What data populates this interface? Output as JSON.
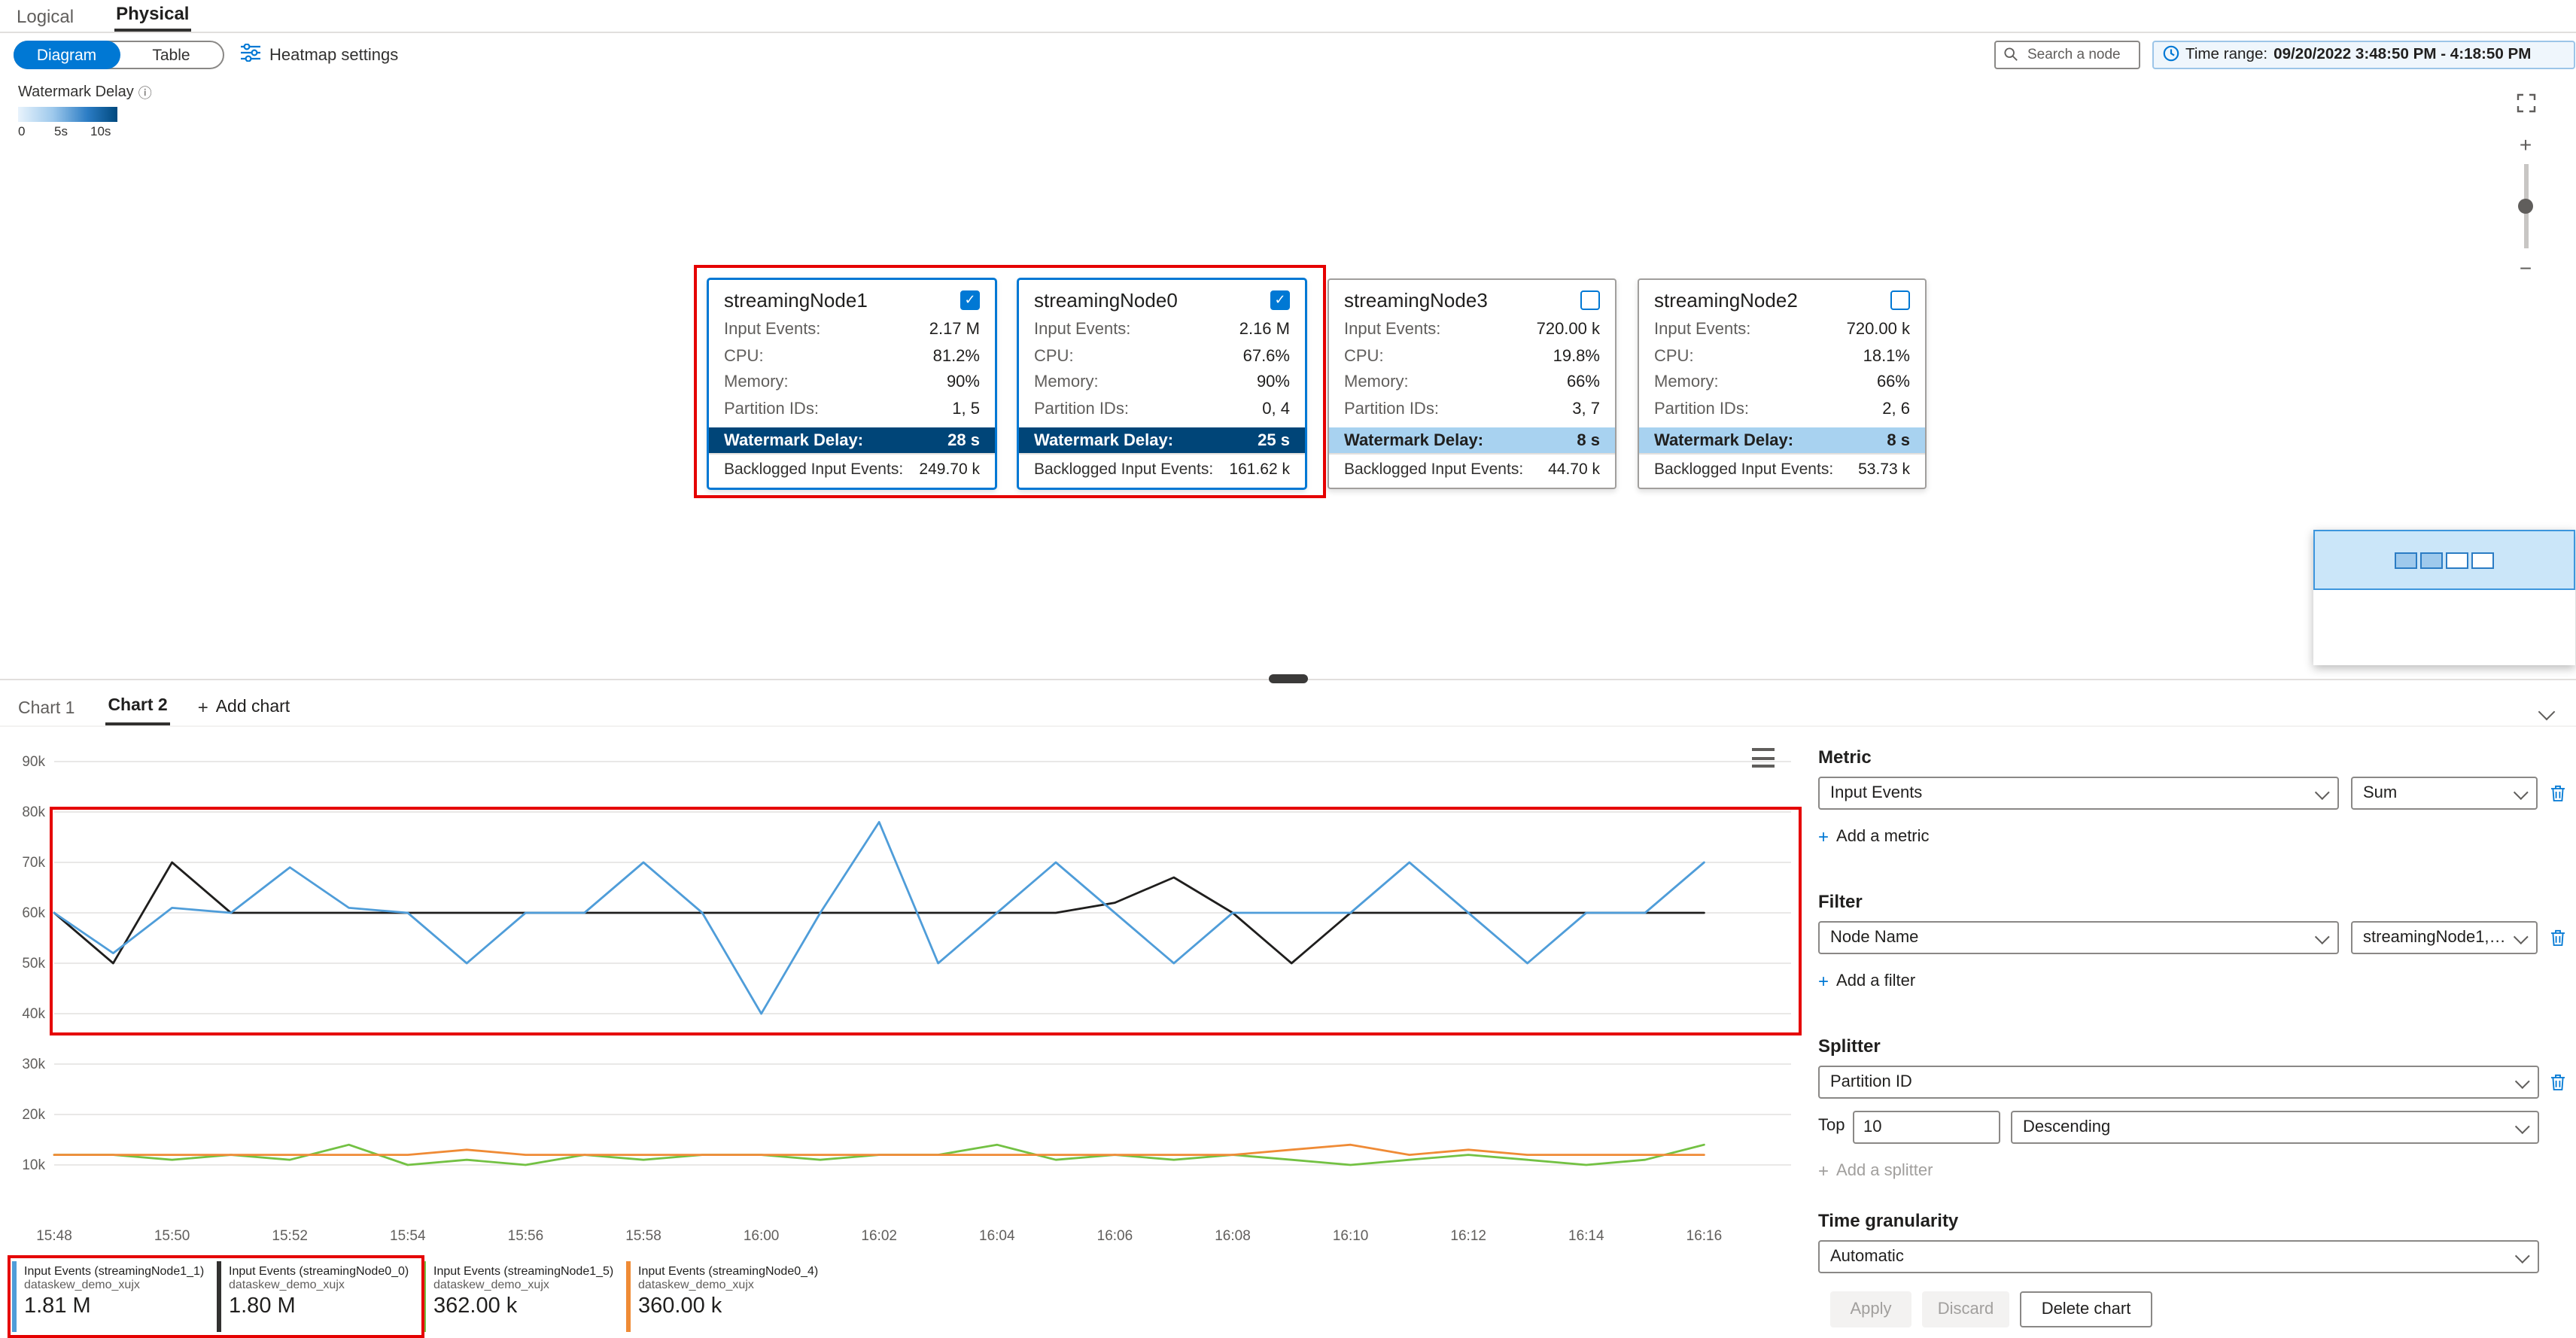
{
  "icons": {
    "plus": "+",
    "minus": "−",
    "check": "✓",
    "info": "ⓘ"
  },
  "header": {
    "tabs": [
      {
        "label": "Logical",
        "active": false
      },
      {
        "label": "Physical",
        "active": true
      }
    ],
    "view_toggle": {
      "diagram_label": "Diagram",
      "table_label": "Table",
      "selected": "Diagram"
    },
    "heatmap_settings_label": "Heatmap settings",
    "search_placeholder": "Search a node",
    "time_range": {
      "label": "Time range:",
      "value": "09/20/2022 3:48:50 PM - 4:18:50 PM"
    }
  },
  "watermark_legend": {
    "title": "Watermark Delay",
    "ticks": [
      "0",
      "5s",
      "10s"
    ]
  },
  "nodes": [
    {
      "name": "streamingNode1",
      "checked": true,
      "selected": true,
      "metrics": [
        [
          "Input Events:",
          "2.17 M"
        ],
        [
          "CPU:",
          "81.2%"
        ],
        [
          "Memory:",
          "90%"
        ],
        [
          "Partition IDs:",
          "1, 5"
        ]
      ],
      "watermark_delay": {
        "label": "Watermark Delay:",
        "value": "28 s",
        "severity": "high"
      },
      "backlog": {
        "label": "Backlogged Input Events:",
        "value": "249.70 k"
      }
    },
    {
      "name": "streamingNode0",
      "checked": true,
      "selected": true,
      "metrics": [
        [
          "Input Events:",
          "2.16 M"
        ],
        [
          "CPU:",
          "67.6%"
        ],
        [
          "Memory:",
          "90%"
        ],
        [
          "Partition IDs:",
          "0, 4"
        ]
      ],
      "watermark_delay": {
        "label": "Watermark Delay:",
        "value": "25 s",
        "severity": "high"
      },
      "backlog": {
        "label": "Backlogged Input Events:",
        "value": "161.62 k"
      }
    },
    {
      "name": "streamingNode3",
      "checked": false,
      "selected": false,
      "metrics": [
        [
          "Input Events:",
          "720.00 k"
        ],
        [
          "CPU:",
          "19.8%"
        ],
        [
          "Memory:",
          "66%"
        ],
        [
          "Partition IDs:",
          "3, 7"
        ]
      ],
      "watermark_delay": {
        "label": "Watermark Delay:",
        "value": "8 s",
        "severity": "medium"
      },
      "backlog": {
        "label": "Backlogged Input Events:",
        "value": "44.70 k"
      }
    },
    {
      "name": "streamingNode2",
      "checked": false,
      "selected": false,
      "metrics": [
        [
          "Input Events:",
          "720.00 k"
        ],
        [
          "CPU:",
          "18.1%"
        ],
        [
          "Memory:",
          "66%"
        ],
        [
          "Partition IDs:",
          "2, 6"
        ]
      ],
      "watermark_delay": {
        "label": "Watermark Delay:",
        "value": "8 s",
        "severity": "medium"
      },
      "backlog": {
        "label": "Backlogged Input Events:",
        "value": "53.73 k"
      }
    }
  ],
  "chart_tabs": {
    "tabs": [
      {
        "label": "Chart 1",
        "active": false
      },
      {
        "label": "Chart 2",
        "active": true
      }
    ],
    "add_chart_label": "Add chart"
  },
  "chart_data": {
    "type": "line",
    "x": [
      "15:48",
      "15:49",
      "15:50",
      "15:51",
      "15:52",
      "15:53",
      "15:54",
      "15:55",
      "15:56",
      "15:57",
      "15:58",
      "15:59",
      "16:00",
      "16:01",
      "16:02",
      "16:03",
      "16:04",
      "16:05",
      "16:06",
      "16:07",
      "16:08",
      "16:09",
      "16:10",
      "16:11",
      "16:12",
      "16:13",
      "16:14",
      "16:15",
      "16:16"
    ],
    "x_ticks": [
      "15:48",
      "15:50",
      "15:52",
      "15:54",
      "15:56",
      "15:58",
      "16:00",
      "16:02",
      "16:04",
      "16:06",
      "16:08",
      "16:10",
      "16:12",
      "16:14",
      "16:16"
    ],
    "y_ticks": [
      "90k",
      "80k",
      "70k",
      "60k",
      "50k",
      "40k",
      "30k",
      "20k",
      "10k"
    ],
    "ylim": [
      0,
      90000
    ],
    "grid": true,
    "legend_position": "bottom",
    "series": [
      {
        "name": "Input Events (streamingNode1_1)",
        "color": "#4f9dd9",
        "values": [
          60000,
          52000,
          61000,
          60000,
          69000,
          61000,
          60000,
          50000,
          60000,
          60000,
          70000,
          60000,
          40000,
          60000,
          78000,
          50000,
          60000,
          70000,
          60000,
          50000,
          60000,
          60000,
          60000,
          70000,
          60000,
          50000,
          60000,
          60000,
          70000
        ]
      },
      {
        "name": "Input Events (streamingNode0_0)",
        "color": "#1f1e1d",
        "values": [
          60000,
          50000,
          70000,
          60000,
          60000,
          60000,
          60000,
          60000,
          60000,
          60000,
          60000,
          60000,
          60000,
          60000,
          60000,
          60000,
          60000,
          60000,
          62000,
          67000,
          60000,
          50000,
          60000,
          60000,
          60000,
          60000,
          60000,
          60000,
          60000
        ]
      },
      {
        "name": "Input Events (streamingNode1_5)",
        "color": "#73c143",
        "values": [
          12000,
          12000,
          11000,
          12000,
          11000,
          14000,
          10000,
          11000,
          10000,
          12000,
          11000,
          12000,
          12000,
          11000,
          12000,
          12000,
          14000,
          11000,
          12000,
          11000,
          12000,
          11000,
          10000,
          11000,
          12000,
          11000,
          10000,
          11000,
          14000
        ]
      },
      {
        "name": "Input Events (streamingNode0_4)",
        "color": "#ef8b36",
        "values": [
          12000,
          12000,
          12000,
          12000,
          12000,
          12000,
          12000,
          13000,
          12000,
          12000,
          12000,
          12000,
          12000,
          12000,
          12000,
          12000,
          12000,
          12000,
          12000,
          12000,
          12000,
          13000,
          14000,
          12000,
          13000,
          12000,
          12000,
          12000,
          12000
        ]
      }
    ]
  },
  "legend_cards": [
    {
      "title": "Input Events (streamingNode1_1)",
      "subtitle": "dataskew_demo_xujx",
      "value": "1.81 M",
      "color": "#4f9dd9"
    },
    {
      "title": "Input Events (streamingNode0_0)",
      "subtitle": "dataskew_demo_xujx",
      "value": "1.80 M",
      "color": "#323130"
    },
    {
      "title": "Input Events (streamingNode1_5)",
      "subtitle": "dataskew_demo_xujx",
      "value": "362.00 k",
      "color": "#73c143"
    },
    {
      "title": "Input Events (streamingNode0_4)",
      "subtitle": "dataskew_demo_xujx",
      "value": "360.00 k",
      "color": "#ef8b36"
    }
  ],
  "config_panel": {
    "metric": {
      "heading": "Metric",
      "metric_dropdown": "Input Events",
      "aggregation_dropdown": "Sum",
      "add_label": "Add a metric"
    },
    "filter": {
      "heading": "Filter",
      "field_dropdown": "Node Name",
      "value_dropdown": "streamingNode1, str...",
      "add_label": "Add a filter"
    },
    "splitter": {
      "heading": "Splitter",
      "dropdown": "Partition ID",
      "top_label": "Top",
      "top_value": "10",
      "order_dropdown": "Descending",
      "add_label": "Add a splitter"
    },
    "time_granularity": {
      "heading": "Time granularity",
      "dropdown": "Automatic"
    },
    "buttons": {
      "apply": "Apply",
      "discard": "Discard",
      "delete_chart": "Delete chart"
    }
  }
}
